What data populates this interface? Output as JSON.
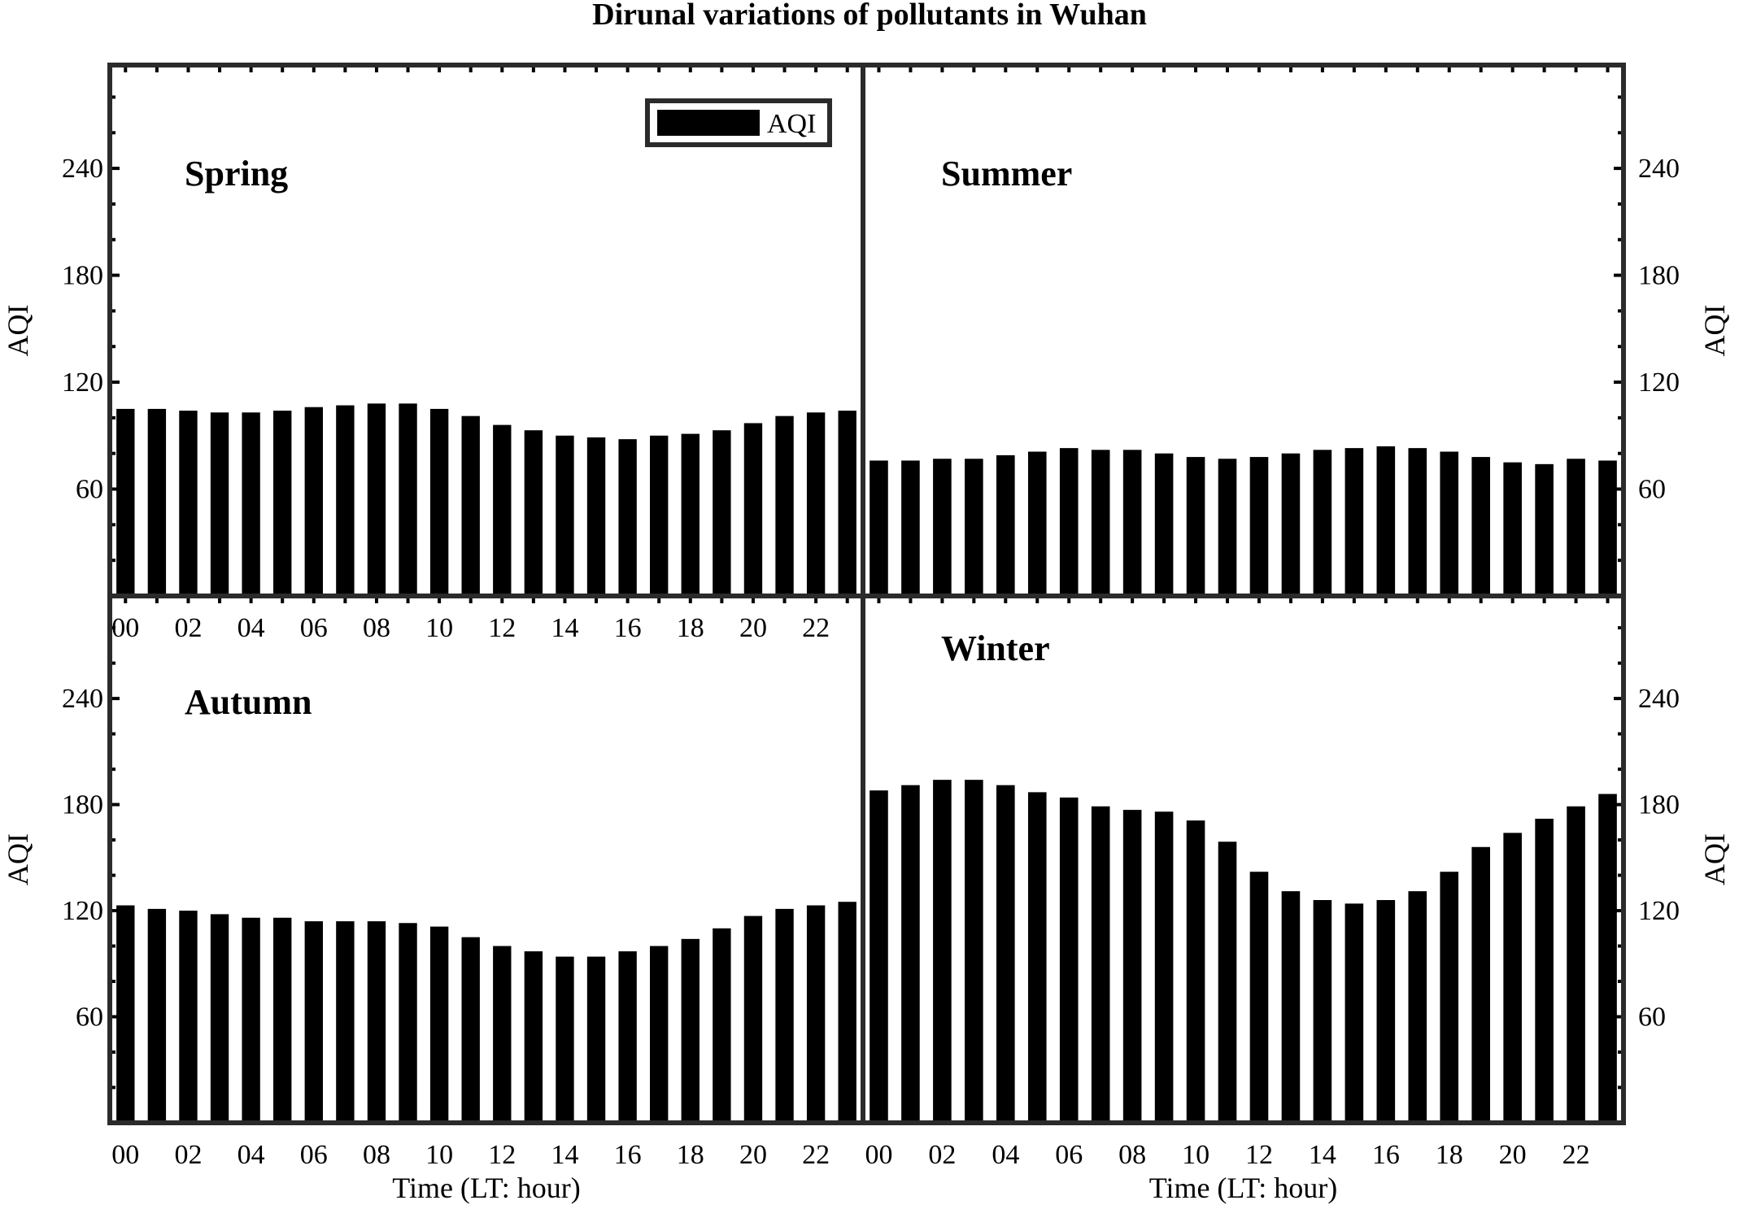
{
  "figure": {
    "title": "Dirunal variations of pollutants in Wuhan",
    "legend_label": "AQI",
    "y_axis_label": "AQI",
    "x_axis_label": "Time (LT: hour)"
  },
  "chart_data": [
    {
      "type": "bar",
      "title": "Spring",
      "categories": [
        "00",
        "01",
        "02",
        "03",
        "04",
        "05",
        "06",
        "07",
        "08",
        "09",
        "10",
        "11",
        "12",
        "13",
        "14",
        "15",
        "16",
        "17",
        "18",
        "19",
        "20",
        "21",
        "22",
        "23"
      ],
      "series": [
        {
          "name": "AQI",
          "values": [
            105,
            105,
            104,
            103,
            103,
            104,
            106,
            107,
            108,
            108,
            105,
            101,
            96,
            93,
            90,
            89,
            88,
            90,
            91,
            93,
            97,
            101,
            103,
            104
          ]
        }
      ],
      "x_tick_labels": [
        "00",
        "02",
        "04",
        "06",
        "08",
        "10",
        "12",
        "14",
        "16",
        "18",
        "20",
        "22"
      ],
      "ylabel": "AQI",
      "y_ticks": [
        60,
        120,
        180,
        240
      ],
      "ylim": [
        0,
        298
      ],
      "y_axis_side": "left",
      "legend": "top-right",
      "bar_color": "#000000"
    },
    {
      "type": "bar",
      "title": "Summer",
      "categories": [
        "00",
        "01",
        "02",
        "03",
        "04",
        "05",
        "06",
        "07",
        "08",
        "09",
        "10",
        "11",
        "12",
        "13",
        "14",
        "15",
        "16",
        "17",
        "18",
        "19",
        "20",
        "21",
        "22",
        "23"
      ],
      "series": [
        {
          "name": "AQI",
          "values": [
            76,
            76,
            77,
            77,
            79,
            81,
            83,
            82,
            82,
            80,
            78,
            77,
            78,
            80,
            82,
            83,
            84,
            83,
            81,
            78,
            75,
            74,
            77,
            76
          ]
        }
      ],
      "x_tick_labels": [],
      "ylabel": "AQI",
      "y_ticks": [
        60,
        120,
        180,
        240
      ],
      "ylim": [
        0,
        298
      ],
      "y_axis_side": "right",
      "bar_color": "#000000"
    },
    {
      "type": "bar",
      "title": "Autumn",
      "categories": [
        "00",
        "01",
        "02",
        "03",
        "04",
        "05",
        "06",
        "07",
        "08",
        "09",
        "10",
        "11",
        "12",
        "13",
        "14",
        "15",
        "16",
        "17",
        "18",
        "19",
        "20",
        "21",
        "22",
        "23"
      ],
      "series": [
        {
          "name": "AQI",
          "values": [
            123,
            121,
            120,
            118,
            116,
            116,
            114,
            114,
            114,
            113,
            111,
            105,
            100,
            97,
            94,
            94,
            97,
            100,
            104,
            110,
            117,
            121,
            123,
            125
          ]
        }
      ],
      "x_tick_labels": [
        "00",
        "02",
        "04",
        "06",
        "08",
        "10",
        "12",
        "14",
        "16",
        "18",
        "20",
        "22"
      ],
      "xlabel": "Time (LT: hour)",
      "ylabel": "AQI",
      "y_ticks": [
        60,
        120,
        180,
        240
      ],
      "ylim": [
        0,
        298
      ],
      "y_axis_side": "left",
      "bar_color": "#000000"
    },
    {
      "type": "bar",
      "title": "Winter",
      "categories": [
        "00",
        "01",
        "02",
        "03",
        "04",
        "05",
        "06",
        "07",
        "08",
        "09",
        "10",
        "11",
        "12",
        "13",
        "14",
        "15",
        "16",
        "17",
        "18",
        "19",
        "20",
        "21",
        "22",
        "23"
      ],
      "series": [
        {
          "name": "AQI",
          "values": [
            188,
            191,
            194,
            194,
            191,
            187,
            184,
            179,
            177,
            176,
            171,
            159,
            142,
            131,
            126,
            124,
            126,
            131,
            142,
            156,
            164,
            172,
            179,
            186
          ]
        }
      ],
      "x_tick_labels": [
        "00",
        "02",
        "04",
        "06",
        "08",
        "10",
        "12",
        "14",
        "16",
        "18",
        "20",
        "22"
      ],
      "xlabel": "Time (LT: hour)",
      "ylabel": "AQI",
      "y_ticks": [
        60,
        120,
        180,
        240
      ],
      "ylim": [
        0,
        298
      ],
      "y_axis_side": "right",
      "bar_color": "#000000"
    }
  ]
}
